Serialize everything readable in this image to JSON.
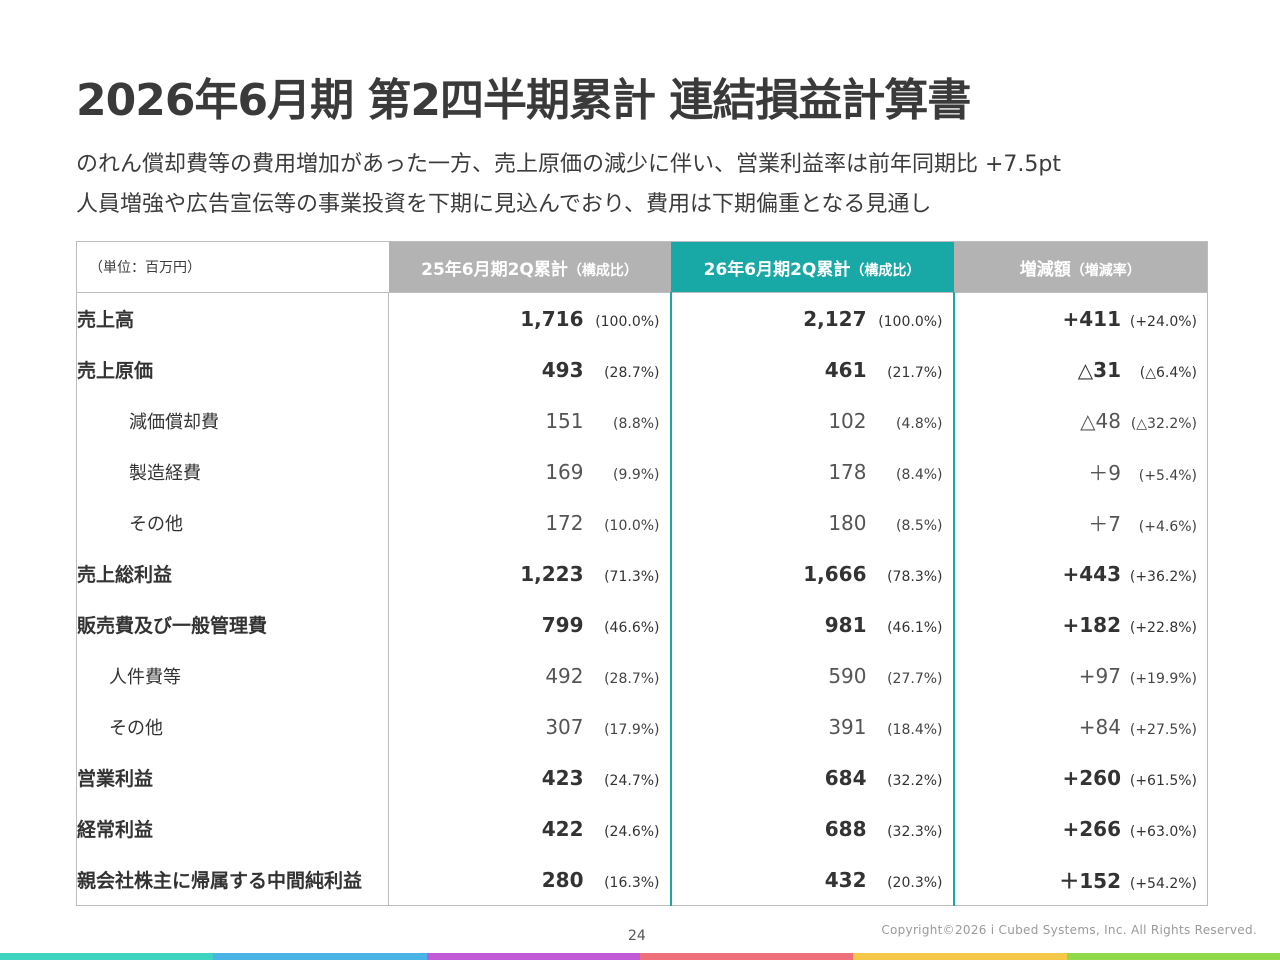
{
  "title": "2026年6月期 第2四半期累計 連結損益計算書",
  "subtitle_lines": [
    "のれん償却費等の費用増加があった一方、売上原価の減少に伴い、営業利益率は前年同期比 +7.5pt",
    "人員増強や広告宣伝等の事業投資を下期に見込んでおり、費用は下期偏重となる見通し"
  ],
  "table": {
    "unit_label": "（単位：百万円）",
    "headers": {
      "prev": {
        "main": "25年6月期2Q累計",
        "sub": "（構成比）"
      },
      "curr": {
        "main": "26年6月期2Q累計",
        "sub": "（構成比）"
      },
      "diff": {
        "main": "増減額",
        "sub": "（増減率）"
      }
    },
    "rows": [
      {
        "label": "売上高",
        "prev": "1,716",
        "prev_pct": "(100.0%)",
        "curr": "2,127",
        "curr_pct": "(100.0%)",
        "diff": "+411",
        "diff_pct": "(+24.0%)"
      },
      {
        "label": "売上原価",
        "prev": "493",
        "prev_pct": "(28.7%)",
        "curr": "461",
        "curr_pct": "(21.7%)",
        "diff": "△31",
        "diff_pct": "(△6.4%)"
      },
      {
        "label": "減価償却費",
        "prev": "151",
        "prev_pct": "(8.8%)",
        "curr": "102",
        "curr_pct": "(4.8%)",
        "diff": "△48",
        "diff_pct": "(△32.2%)"
      },
      {
        "label": "製造経費",
        "prev": "169",
        "prev_pct": "(9.9%)",
        "curr": "178",
        "curr_pct": "(8.4%)",
        "diff": "＋9",
        "diff_pct": "(+5.4%)"
      },
      {
        "label": "その他",
        "prev": "172",
        "prev_pct": "(10.0%)",
        "curr": "180",
        "curr_pct": "(8.5%)",
        "diff": "＋7",
        "diff_pct": "(+4.6%)"
      },
      {
        "label": "売上総利益",
        "prev": "1,223",
        "prev_pct": "(71.3%)",
        "curr": "1,666",
        "curr_pct": "(78.3%)",
        "diff": "+443",
        "diff_pct": "(+36.2%)"
      },
      {
        "label": "販売費及び一般管理費",
        "prev": "799",
        "prev_pct": "(46.6%)",
        "curr": "981",
        "curr_pct": "(46.1%)",
        "diff": "+182",
        "diff_pct": "(+22.8%)"
      },
      {
        "label": "人件費等",
        "prev": "492",
        "prev_pct": "(28.7%)",
        "curr": "590",
        "curr_pct": "(27.7%)",
        "diff": "+97",
        "diff_pct": "(+19.9%)"
      },
      {
        "label": "その他",
        "prev": "307",
        "prev_pct": "(17.9%)",
        "curr": "391",
        "curr_pct": "(18.4%)",
        "diff": "+84",
        "diff_pct": "(+27.5%)"
      },
      {
        "label": "営業利益",
        "prev": "423",
        "prev_pct": "(24.7%)",
        "curr": "684",
        "curr_pct": "(32.2%)",
        "diff": "+260",
        "diff_pct": "(+61.5%)"
      },
      {
        "label": "経常利益",
        "prev": "422",
        "prev_pct": "(24.6%)",
        "curr": "688",
        "curr_pct": "(32.3%)",
        "diff": "+266",
        "diff_pct": "(+63.0%)"
      },
      {
        "label": "親会社株主に帰属する中間純利益",
        "prev": "280",
        "prev_pct": "(16.3%)",
        "curr": "432",
        "curr_pct": "(20.3%)",
        "diff": "＋152",
        "diff_pct": "(+54.2%)"
      }
    ]
  },
  "page_number": "24",
  "copyright": "Copyright©2026 i Cubed Systems, Inc. All Rights Reserved.",
  "colors": {
    "accent_teal": "#18a8a6",
    "header_gray": "#b3b3b3",
    "bottom_bar": [
      "#3fd4c0",
      "#4ab4e6",
      "#c15ad6",
      "#ef6f7a",
      "#f5c84a",
      "#8fd94a"
    ]
  }
}
